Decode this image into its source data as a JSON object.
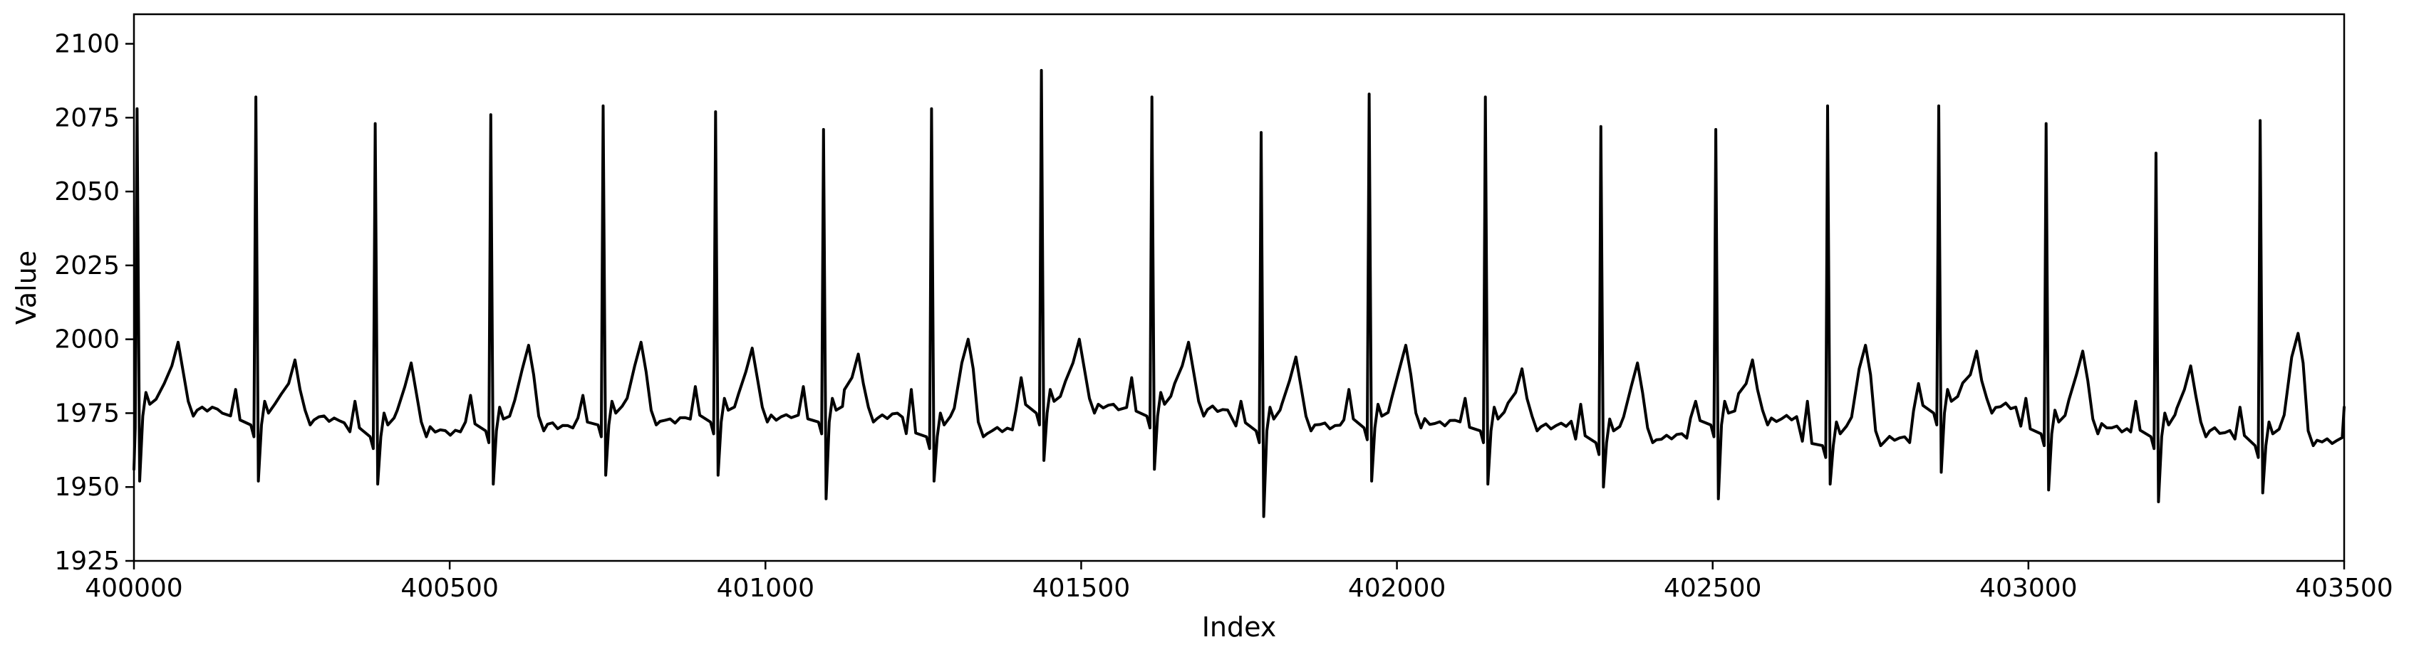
{
  "chart_data": {
    "type": "line",
    "title": "",
    "xlabel": "Index",
    "ylabel": "Value",
    "xlim": [
      400000,
      403500
    ],
    "ylim": [
      1925,
      2110
    ],
    "xticks": [
      400000,
      400500,
      401000,
      401500,
      402000,
      402500,
      403000,
      403500
    ],
    "yticks": [
      1925,
      1950,
      1975,
      2000,
      2025,
      2050,
      2075,
      2100
    ],
    "grid": false,
    "legend": "none",
    "line_color": "#000000",
    "beats": [
      {
        "r": 400005,
        "peak": 2078,
        "s": 1952,
        "base": 1976,
        "p": 1980,
        "t": 1999,
        "t_off": 65
      },
      {
        "r": 400193,
        "peak": 2082,
        "s": 1952,
        "base": 1973,
        "p": 1983,
        "t": 1993,
        "t_off": 62
      },
      {
        "r": 400382,
        "peak": 2073,
        "s": 1951,
        "base": 1969,
        "p": 1979,
        "t": 1992,
        "t_off": 57
      },
      {
        "r": 400565,
        "peak": 2076,
        "s": 1951,
        "base": 1971,
        "p": 1981,
        "t": 1998,
        "t_off": 60
      },
      {
        "r": 400743,
        "peak": 2079,
        "s": 1954,
        "base": 1973,
        "p": 1981,
        "t": 1999,
        "t_off": 60
      },
      {
        "r": 400921,
        "peak": 2077,
        "s": 1954,
        "base": 1974,
        "p": 1984,
        "t": 1997,
        "t_off": 58
      },
      {
        "r": 401092,
        "peak": 2071,
        "s": 1946,
        "base": 1974,
        "p": 1984,
        "t": 1995,
        "t_off": 55
      },
      {
        "r": 401263,
        "peak": 2078,
        "s": 1952,
        "base": 1969,
        "p": 1983,
        "t": 2000,
        "t_off": 58
      },
      {
        "r": 401437,
        "peak": 2091,
        "s": 1959,
        "base": 1977,
        "p": 1987,
        "t": 2000,
        "t_off": 60
      },
      {
        "r": 401612,
        "peak": 2082,
        "s": 1956,
        "base": 1976,
        "p": 1987,
        "t": 1999,
        "t_off": 58
      },
      {
        "r": 401785,
        "peak": 2070,
        "s": 1940,
        "base": 1971,
        "p": 1979,
        "t": 1994,
        "t_off": 55
      },
      {
        "r": 401956,
        "peak": 2083,
        "s": 1952,
        "base": 1972,
        "p": 1983,
        "t": 1998,
        "t_off": 58
      },
      {
        "r": 402140,
        "peak": 2082,
        "s": 1951,
        "base": 1971,
        "p": 1980,
        "t": 1990,
        "t_off": 58
      },
      {
        "r": 402323,
        "peak": 2072,
        "s": 1950,
        "base": 1967,
        "p": 1978,
        "t": 1992,
        "t_off": 58
      },
      {
        "r": 402505,
        "peak": 2071,
        "s": 1946,
        "base": 1973,
        "p": 1979,
        "t": 1993,
        "t_off": 58
      },
      {
        "r": 402682,
        "peak": 2079,
        "s": 1951,
        "base": 1966,
        "p": 1979,
        "t": 1998,
        "t_off": 60
      },
      {
        "r": 402858,
        "peak": 2079,
        "s": 1955,
        "base": 1977,
        "p": 1985,
        "t": 1996,
        "t_off": 60
      },
      {
        "r": 403028,
        "peak": 2073,
        "s": 1949,
        "base": 1970,
        "p": 1980,
        "t": 1996,
        "t_off": 58
      },
      {
        "r": 403202,
        "peak": 2063,
        "s": 1945,
        "base": 1969,
        "p": 1979,
        "t": 1991,
        "t_off": 55
      },
      {
        "r": 403367,
        "peak": 2074,
        "s": 1948,
        "base": 1966,
        "p": 1977,
        "t": 2002,
        "t_off": 60
      }
    ],
    "end": {
      "x": 403500,
      "y": 1977
    }
  }
}
